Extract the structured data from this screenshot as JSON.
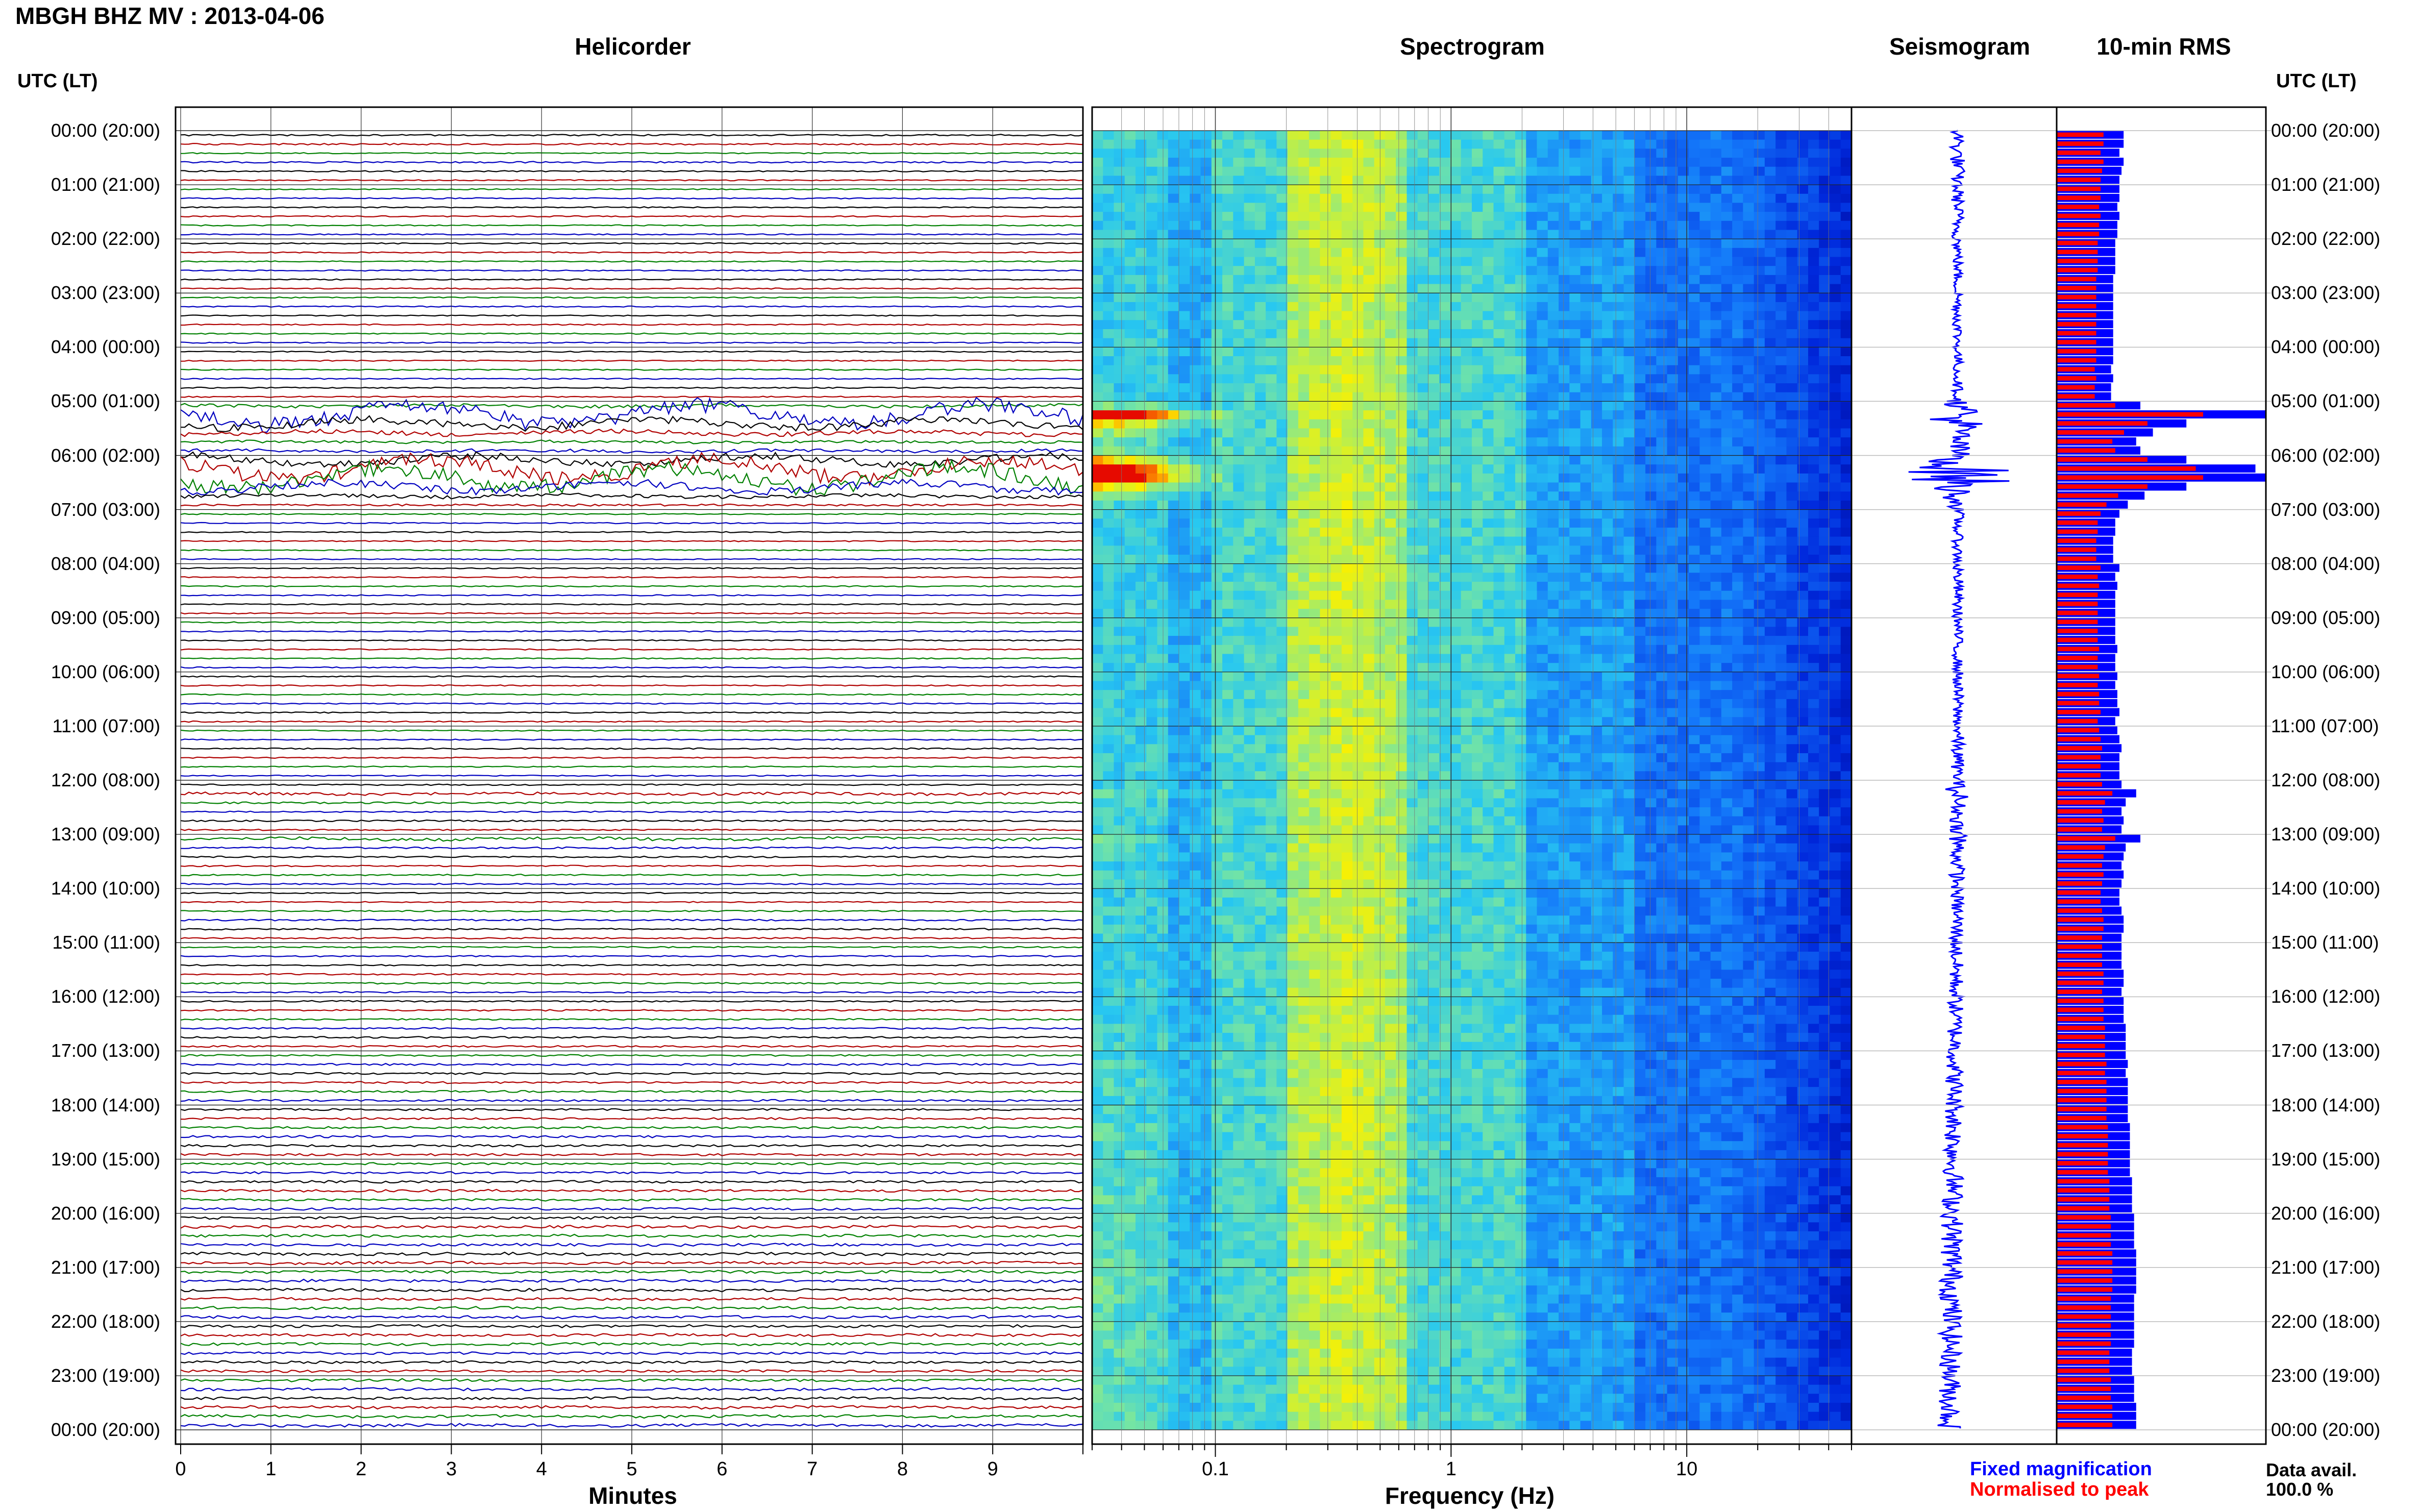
{
  "title": "MBGH BHZ MV : 2013-04-06",
  "panels": {
    "helicorder": "Helicorder",
    "spectrogram": "Spectrogram",
    "seismogram": "Seismogram",
    "rms": "10-min RMS"
  },
  "time_axis_header": "UTC (LT)",
  "time_labels": [
    "00:00 (20:00)",
    "01:00 (21:00)",
    "02:00 (22:00)",
    "03:00 (23:00)",
    "04:00 (00:00)",
    "05:00 (01:00)",
    "06:00 (02:00)",
    "07:00 (03:00)",
    "08:00 (04:00)",
    "09:00 (05:00)",
    "10:00 (06:00)",
    "11:00 (07:00)",
    "12:00 (08:00)",
    "13:00 (09:00)",
    "14:00 (10:00)",
    "15:00 (11:00)",
    "16:00 (12:00)",
    "17:00 (13:00)",
    "18:00 (14:00)",
    "19:00 (15:00)",
    "20:00 (16:00)",
    "21:00 (17:00)",
    "22:00 (18:00)",
    "23:00 (19:00)",
    "00:00 (20:00)"
  ],
  "x_axes": {
    "helicorder_label": "Minutes",
    "helicorder_ticks": [
      "0",
      "1",
      "2",
      "3",
      "4",
      "5",
      "6",
      "7",
      "8",
      "9"
    ],
    "spectrogram_label": "Frequency (Hz)",
    "spectrogram_ticks": [
      "0.1",
      "1",
      "10"
    ]
  },
  "legend": {
    "fixed": "Fixed magnification",
    "normalised": "Normalised to peak",
    "fixed_color": "#0000ff",
    "normalised_color": "#ff0000"
  },
  "data_availability": {
    "label": "Data avail.",
    "value": "100.0 %"
  },
  "colors": {
    "trace_cycle": [
      "#000000",
      "#b00000",
      "#008000",
      "#0000c0"
    ],
    "spectrogram_low": "#00008b",
    "spectrogram_high": "#ff0000"
  },
  "chart_data": {
    "type": "heatmap",
    "station": "MBGH BHZ MV",
    "date": "2013-04-06",
    "time_range_utc_hours": [
      0,
      24
    ],
    "helicorder_minutes_range": [
      0,
      10
    ],
    "spectrogram_frequency_range_hz": [
      0.03,
      50
    ],
    "spectrogram_scale": "log",
    "rms_series": [
      {
        "name": "Fixed magnification",
        "color": "#0000ff"
      },
      {
        "name": "Normalised to peak",
        "color": "#ff0000"
      }
    ],
    "rms_fixed_relative": [
      0.32,
      0.32,
      0.3,
      0.32,
      0.31,
      0.3,
      0.3,
      0.3,
      0.29,
      0.3,
      0.29,
      0.29,
      0.28,
      0.28,
      0.28,
      0.28,
      0.27,
      0.27,
      0.27,
      0.27,
      0.27,
      0.27,
      0.27,
      0.27,
      0.27,
      0.27,
      0.26,
      0.27,
      0.26,
      0.26,
      0.4,
      1.0,
      0.62,
      0.46,
      0.38,
      0.4,
      0.62,
      0.95,
      1.0,
      0.62,
      0.42,
      0.34,
      0.3,
      0.28,
      0.28,
      0.27,
      0.27,
      0.27,
      0.3,
      0.28,
      0.29,
      0.28,
      0.28,
      0.28,
      0.28,
      0.28,
      0.28,
      0.29,
      0.28,
      0.28,
      0.29,
      0.28,
      0.29,
      0.29,
      0.3,
      0.28,
      0.29,
      0.3,
      0.31,
      0.3,
      0.3,
      0.3,
      0.31,
      0.38,
      0.33,
      0.31,
      0.32,
      0.31,
      0.4,
      0.33,
      0.32,
      0.31,
      0.32,
      0.31,
      0.3,
      0.3,
      0.31,
      0.32,
      0.32,
      0.31,
      0.31,
      0.31,
      0.31,
      0.32,
      0.32,
      0.31,
      0.32,
      0.32,
      0.32,
      0.33,
      0.33,
      0.33,
      0.33,
      0.34,
      0.33,
      0.34,
      0.34,
      0.34,
      0.34,
      0.34,
      0.35,
      0.35,
      0.35,
      0.35,
      0.35,
      0.35,
      0.36,
      0.36,
      0.36,
      0.36,
      0.37,
      0.37,
      0.37,
      0.37,
      0.38,
      0.38,
      0.38,
      0.38,
      0.38,
      0.37,
      0.37,
      0.37,
      0.37,
      0.37,
      0.37,
      0.36,
      0.36,
      0.36,
      0.37,
      0.37,
      0.37,
      0.38,
      0.38,
      0.38
    ],
    "events": [
      {
        "utc": "05:00",
        "description": "high-amplitude long-period signal"
      },
      {
        "utc": "06:00",
        "description": "peak amplitude"
      }
    ]
  }
}
